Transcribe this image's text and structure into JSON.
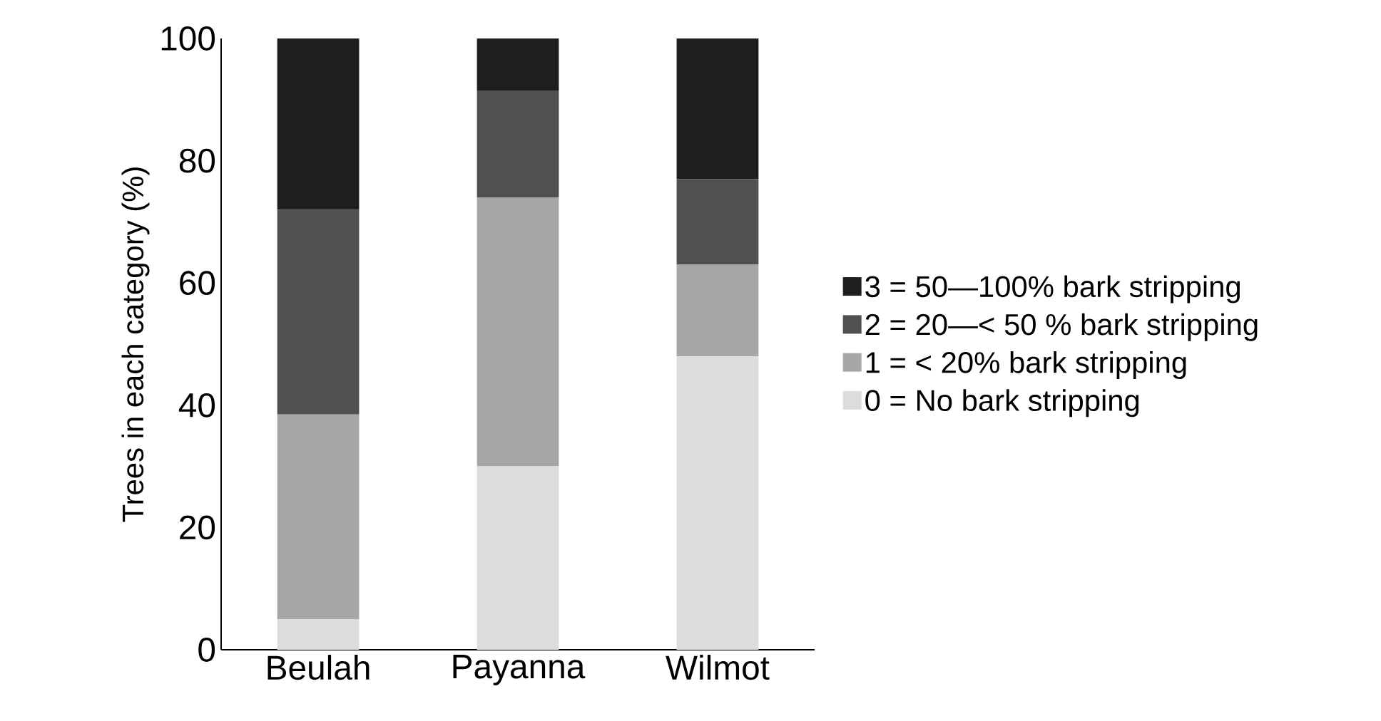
{
  "chart_data": {
    "type": "bar",
    "stacked": true,
    "ylabel": "Trees in each category (%)",
    "categories": [
      "Beulah",
      "Payanna",
      "Wilmot"
    ],
    "series": [
      {
        "name": "0 = No bark stripping",
        "color": "#dcdcdc",
        "values": [
          5,
          30,
          48
        ]
      },
      {
        "name": "1 = < 20% bark stripping",
        "color": "#a6a6a6",
        "values": [
          33.5,
          44,
          15
        ]
      },
      {
        "name": "2 = 20—< 50 % bark stripping",
        "color": "#505050",
        "values": [
          33.5,
          17.5,
          14
        ]
      },
      {
        "name": "3 = 50—100% bark stripping",
        "color": "#1e1e1e",
        "values": [
          28,
          8.5,
          23
        ]
      }
    ],
    "ylim": [
      0,
      100
    ],
    "yticks": [
      0,
      20,
      40,
      60,
      80,
      100
    ],
    "legend": "right",
    "grid": false
  }
}
